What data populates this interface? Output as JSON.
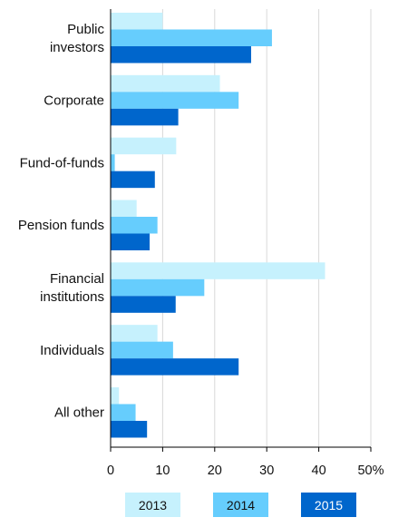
{
  "chart_data": {
    "type": "bar",
    "orientation": "horizontal",
    "categories": [
      [
        "Public",
        "investors"
      ],
      [
        "Corporate"
      ],
      [
        "Fund-of-funds"
      ],
      [
        "Pension funds"
      ],
      [
        "Financial",
        "institutions"
      ],
      [
        "Individuals"
      ],
      [
        "All other"
      ]
    ],
    "series": [
      {
        "name": "2013",
        "color": "#c6f1fd",
        "values": [
          10,
          21,
          12.6,
          5,
          41.2,
          9,
          1.6
        ]
      },
      {
        "name": "2014",
        "color": "#66cdfd",
        "values": [
          31,
          24.6,
          0.8,
          9,
          18,
          12,
          4.8
        ]
      },
      {
        "name": "2015",
        "color": "#0066cc",
        "values": [
          27,
          13,
          8.5,
          7.5,
          12.5,
          24.6,
          7
        ]
      }
    ],
    "xlim": [
      0,
      50
    ],
    "xticks": [
      "0",
      "10",
      "20",
      "30",
      "40",
      "50%"
    ],
    "grid": true,
    "legend_position": "bottom"
  }
}
